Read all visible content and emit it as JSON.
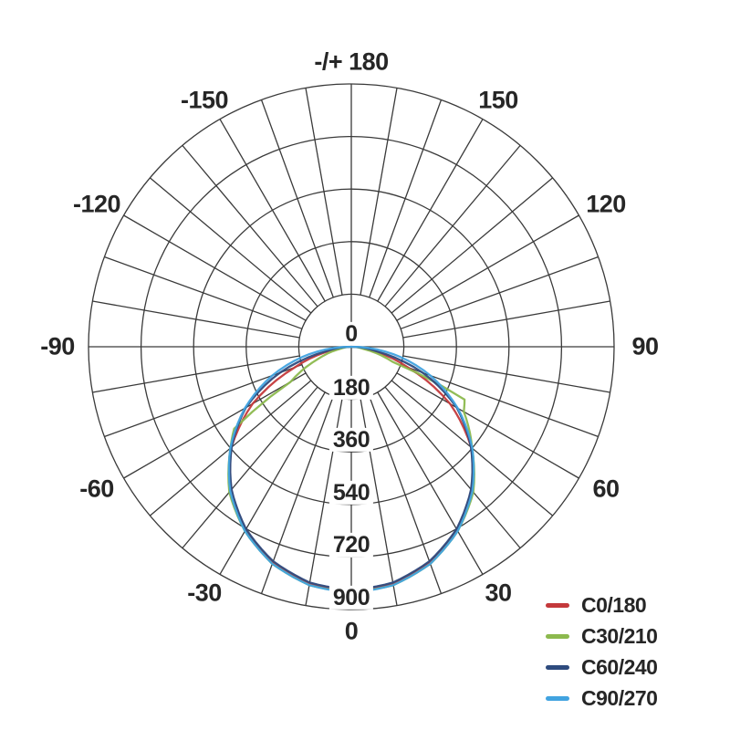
{
  "chart_data": {
    "type": "polar",
    "title": "",
    "description": "Photometric luminous intensity distribution curve (polar diagram)",
    "text_color": "#262626",
    "grid": {
      "color": "#3a3a3a",
      "spoke_step_deg": 10,
      "ring_step": 180,
      "rings": [
        180,
        360,
        540,
        720,
        900
      ]
    },
    "radial_max": 900,
    "angle_ticks": [
      {
        "angle": 180,
        "label": "-/+ 180"
      },
      {
        "angle": -150,
        "label": "-150"
      },
      {
        "angle": -120,
        "label": "-120"
      },
      {
        "angle": -90,
        "label": "-90"
      },
      {
        "angle": -60,
        "label": "-60"
      },
      {
        "angle": -30,
        "label": "-30"
      },
      {
        "angle": 0,
        "label": "0"
      },
      {
        "angle": 30,
        "label": "30"
      },
      {
        "angle": 60,
        "label": "60"
      },
      {
        "angle": 90,
        "label": "90"
      },
      {
        "angle": 120,
        "label": "120"
      },
      {
        "angle": 150,
        "label": "150"
      }
    ],
    "radial_ticks": [
      {
        "value": 0,
        "label": "0"
      },
      {
        "value": 180,
        "label": "180"
      },
      {
        "value": 360,
        "label": "360"
      },
      {
        "value": 540,
        "label": "540"
      },
      {
        "value": 720,
        "label": "720"
      },
      {
        "value": 900,
        "label": "900"
      }
    ],
    "legend_position": "bottom-right",
    "series": [
      {
        "name": "C0/180",
        "color": "#c4393b",
        "angles": [
          -90,
          -80,
          -70,
          -60,
          -50,
          -40,
          -30,
          -20,
          -10,
          0,
          10,
          20,
          30,
          40,
          50,
          60,
          70,
          80,
          90
        ],
        "values": [
          0,
          65,
          205,
          390,
          536,
          640,
          724,
          785,
          823,
          836,
          823,
          785,
          724,
          640,
          536,
          390,
          205,
          65,
          0
        ]
      },
      {
        "name": "C30/210",
        "color": "#8cb94e",
        "angles": [
          -90,
          -80,
          -70,
          -60,
          -55,
          -50,
          -40,
          -30,
          -20,
          -10,
          0,
          10,
          20,
          30,
          40,
          50,
          60,
          65,
          70,
          80,
          90
        ],
        "values": [
          0,
          35,
          120,
          240,
          490,
          540,
          650,
          729,
          791,
          829,
          840,
          829,
          791,
          729,
          650,
          540,
          445,
          428,
          150,
          40,
          0
        ]
      },
      {
        "name": "C60/240",
        "color": "#2e4b7e",
        "angles": [
          -90,
          -80,
          -70,
          -60,
          -50,
          -40,
          -30,
          -20,
          -10,
          0,
          10,
          20,
          30,
          40,
          50,
          60,
          70,
          80,
          90
        ],
        "values": [
          0,
          85,
          260,
          417,
          535,
          638,
          721,
          782,
          820,
          833,
          820,
          782,
          721,
          638,
          535,
          417,
          260,
          85,
          0
        ]
      },
      {
        "name": "C90/270",
        "color": "#41a3e0",
        "angles": [
          -90,
          -80,
          -70,
          -60,
          -50,
          -40,
          -30,
          -20,
          -10,
          0,
          10,
          20,
          30,
          40,
          50,
          60,
          70,
          80,
          90
        ],
        "values": [
          0,
          146,
          288,
          421,
          541,
          645,
          729,
          791,
          829,
          842,
          829,
          791,
          729,
          645,
          541,
          421,
          288,
          146,
          0
        ]
      }
    ]
  }
}
